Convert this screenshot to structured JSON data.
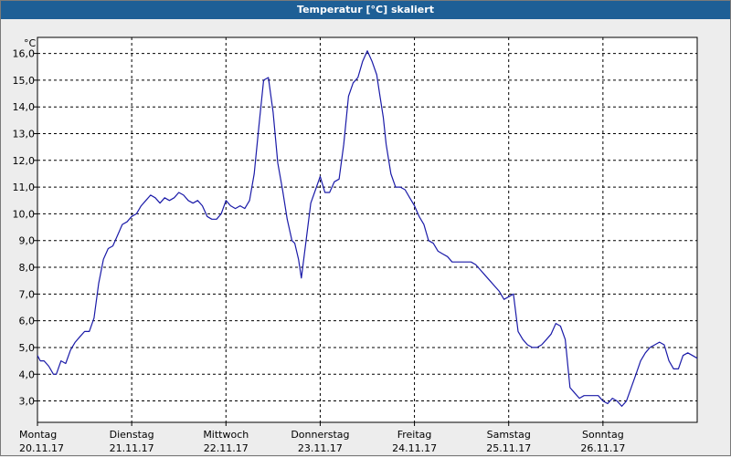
{
  "chart_data": {
    "type": "line",
    "title": "Temperatur [°C] skaliert",
    "y_unit": "°C",
    "ylim": [
      2.2,
      16.6
    ],
    "y_ticks": [
      "3,0",
      "4,0",
      "5,0",
      "6,0",
      "7,0",
      "8,0",
      "9,0",
      "10,0",
      "11,0",
      "12,0",
      "13,0",
      "14,0",
      "15,0",
      "16,0"
    ],
    "y_tick_values": [
      3,
      4,
      5,
      6,
      7,
      8,
      9,
      10,
      11,
      12,
      13,
      14,
      15,
      16
    ],
    "x_range_days": [
      0,
      7
    ],
    "x_ticks": [
      {
        "day": "Montag",
        "date": "20.11.17"
      },
      {
        "day": "Dienstag",
        "date": "21.11.17"
      },
      {
        "day": "Mittwoch",
        "date": "22.11.17"
      },
      {
        "day": "Donnerstag",
        "date": "23.11.17"
      },
      {
        "day": "Freitag",
        "date": "24.11.17"
      },
      {
        "day": "Samstag",
        "date": "25.11.17"
      },
      {
        "day": "Sonntag",
        "date": "26.11.17"
      }
    ],
    "grid": true,
    "series": [
      {
        "color": "#1a1aa8",
        "x": [
          0,
          0.03,
          0.07,
          0.12,
          0.17,
          0.2,
          0.25,
          0.3,
          0.35,
          0.4,
          0.45,
          0.5,
          0.55,
          0.6,
          0.65,
          0.7,
          0.75,
          0.8,
          0.85,
          0.9,
          0.95,
          1.0,
          1.05,
          1.1,
          1.15,
          1.2,
          1.25,
          1.3,
          1.35,
          1.4,
          1.45,
          1.5,
          1.55,
          1.6,
          1.65,
          1.7,
          1.75,
          1.8,
          1.85,
          1.9,
          1.95,
          2.0,
          2.05,
          2.1,
          2.15,
          2.2,
          2.25,
          2.3,
          2.35,
          2.4,
          2.45,
          2.5,
          2.55,
          2.6,
          2.65,
          2.7,
          2.73,
          2.77,
          2.8,
          2.85,
          2.9,
          2.95,
          3.0,
          3.05,
          3.1,
          3.15,
          3.2,
          3.25,
          3.3,
          3.35,
          3.4,
          3.45,
          3.5,
          3.55,
          3.6,
          3.63,
          3.67,
          3.7,
          3.75,
          3.8,
          3.85,
          3.9,
          3.95,
          4.0,
          4.05,
          4.1,
          4.15,
          4.2,
          4.25,
          4.3,
          4.35,
          4.4,
          4.45,
          4.5,
          4.55,
          4.6,
          4.65,
          4.7,
          4.75,
          4.8,
          4.85,
          4.9,
          4.95,
          5.0,
          5.05,
          5.1,
          5.15,
          5.2,
          5.25,
          5.3,
          5.35,
          5.4,
          5.45,
          5.5,
          5.55,
          5.6,
          5.65,
          5.7,
          5.75,
          5.8,
          5.85,
          5.9,
          5.95,
          6.0,
          6.05,
          6.1,
          6.15,
          6.2,
          6.25,
          6.3,
          6.35,
          6.4,
          6.45,
          6.5,
          6.55,
          6.6,
          6.65,
          6.7,
          6.75,
          6.8,
          6.85,
          6.9,
          6.95,
          7.0
        ],
        "y": [
          4.7,
          4.5,
          4.5,
          4.3,
          4.0,
          4.0,
          4.5,
          4.4,
          4.9,
          5.2,
          5.4,
          5.6,
          5.6,
          6.1,
          7.4,
          8.3,
          8.7,
          8.8,
          9.2,
          9.6,
          9.7,
          9.9,
          10.0,
          10.3,
          10.5,
          10.7,
          10.6,
          10.4,
          10.6,
          10.5,
          10.6,
          10.8,
          10.7,
          10.5,
          10.4,
          10.5,
          10.3,
          9.9,
          9.8,
          9.8,
          10.0,
          10.5,
          10.3,
          10.2,
          10.3,
          10.2,
          10.5,
          11.5,
          13.3,
          15.0,
          15.1,
          13.8,
          11.9,
          10.9,
          9.8,
          9.0,
          8.9,
          8.3,
          7.6,
          9.0,
          10.4,
          10.9,
          11.4,
          10.8,
          10.8,
          11.2,
          11.3,
          12.6,
          14.4,
          14.9,
          15.1,
          15.7,
          16.1,
          15.7,
          15.2,
          14.5,
          13.6,
          12.6,
          11.5,
          11.0,
          11.0,
          10.9,
          10.6,
          10.3,
          9.9,
          9.6,
          9.0,
          8.9,
          8.6,
          8.5,
          8.4,
          8.2,
          8.2,
          8.2,
          8.2,
          8.2,
          8.1,
          7.9,
          7.7,
          7.5,
          7.3,
          7.1,
          6.8,
          6.9,
          7.0,
          5.6,
          5.3,
          5.1,
          5.0,
          5.0,
          5.1,
          5.3,
          5.5,
          5.9,
          5.8,
          5.3,
          3.5,
          3.3,
          3.1,
          3.2,
          3.2,
          3.2,
          3.2,
          3.0,
          2.9,
          3.1,
          3.0,
          2.8,
          3.0,
          3.5,
          4.0,
          4.5,
          4.8,
          5.0,
          5.1,
          5.2,
          5.1,
          4.5,
          4.2,
          4.2,
          4.7,
          4.8,
          4.7,
          4.6
        ]
      }
    ]
  }
}
